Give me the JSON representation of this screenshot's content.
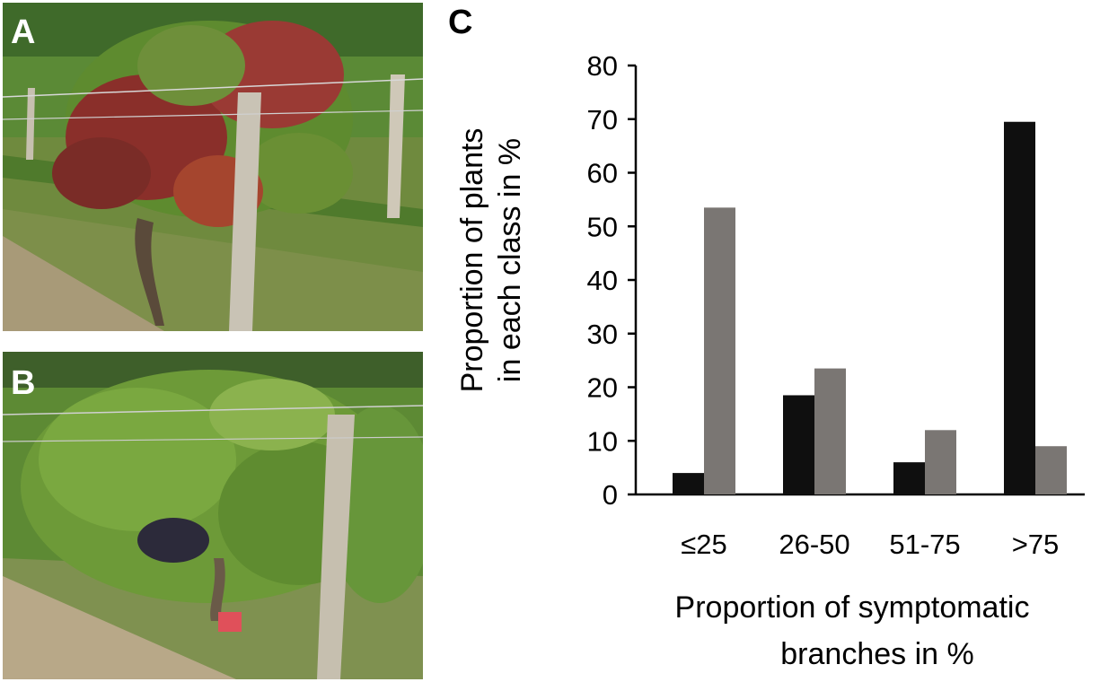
{
  "panels": {
    "a_label": "A",
    "b_label": "B",
    "c_label": "C"
  },
  "photos": {
    "a": {
      "subject": "grapevine with red-purple discolored leaves in vineyard row"
    },
    "b": {
      "subject": "healthy green grapevine in vineyard row"
    }
  },
  "colors": {
    "series1": "#0f0f0f",
    "series2": "#7a7673"
  },
  "chart_data": {
    "type": "bar",
    "categories": [
      "≤25",
      "26-50",
      "51-75",
      ">75"
    ],
    "series": [
      {
        "values": [
          4,
          18.5,
          6,
          69.5
        ]
      },
      {
        "values": [
          53.5,
          23.5,
          12,
          9
        ]
      }
    ],
    "yticks": [
      "0",
      "10",
      "20",
      "30",
      "40",
      "50",
      "60",
      "70",
      "80"
    ],
    "ylim": [
      0,
      80
    ],
    "ylabel_lines": [
      "Proportion  of plants",
      "in each class in %"
    ],
    "xlabel_lines": [
      "Proportion  of symptomatic",
      "branches in %"
    ],
    "grid": false
  }
}
